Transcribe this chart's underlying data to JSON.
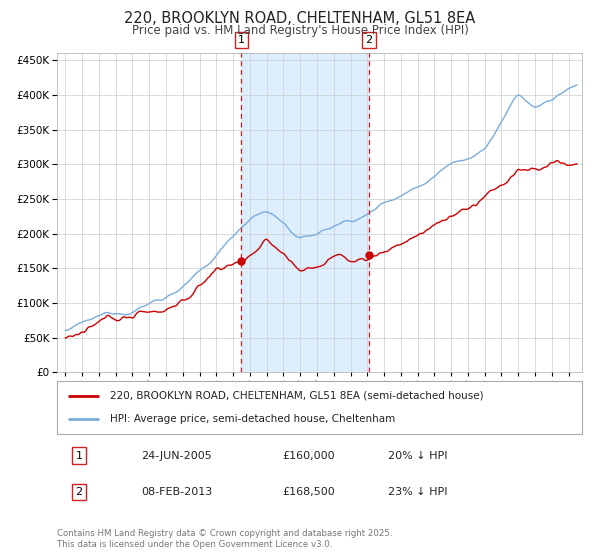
{
  "title": "220, BROOKLYN ROAD, CHELTENHAM, GL51 8EA",
  "subtitle": "Price paid vs. HM Land Registry's House Price Index (HPI)",
  "title_fontsize": 10.5,
  "subtitle_fontsize": 8.5,
  "background_color": "#ffffff",
  "grid_color": "#cccccc",
  "red_color": "#cc0000",
  "blue_color": "#7aacdc",
  "marker1_x": 2005.48,
  "marker2_x": 2013.1,
  "marker1_y": 160000,
  "marker2_y": 168500,
  "shade_color": "#ddeeff",
  "vline_color": "#cc2222",
  "legend_entries": [
    "220, BROOKLYN ROAD, CHELTENHAM, GL51 8EA (semi-detached house)",
    "HPI: Average price, semi-detached house, Cheltenham"
  ],
  "table_data": [
    [
      "1",
      "24-JUN-2005",
      "£160,000",
      "20% ↓ HPI"
    ],
    [
      "2",
      "08-FEB-2013",
      "£168,500",
      "23% ↓ HPI"
    ]
  ],
  "footer": "Contains HM Land Registry data © Crown copyright and database right 2025.\nThis data is licensed under the Open Government Licence v3.0.",
  "ylim": [
    0,
    460000
  ],
  "xlim_start": 1994.5,
  "xlim_end": 2025.8
}
